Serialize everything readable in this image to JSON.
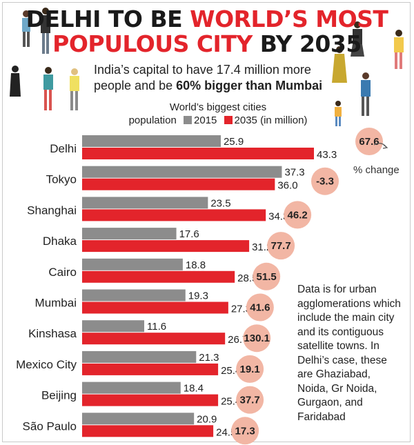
{
  "title": {
    "line1_dark": "DELHI TO BE ",
    "line1_red": "WORLD’S MOST",
    "line2_red": "POPULOUS CITY ",
    "line2_dark": "BY 2035"
  },
  "subtitle": {
    "line1": "India’s capital to have 17.4 million more",
    "line2_plain": "people and be ",
    "line2_bold": "60% bigger than Mumbai"
  },
  "legend": {
    "line1": "World’s biggest cities",
    "prefix": "population",
    "item_2015": "2015",
    "item_2035": "2035 (in million)"
  },
  "pct_change_label": "% change",
  "note": "Data is for urban agglomerations which include the main city and its contiguous satellite towns. In Delhi’s case, these are Ghaziabad, Noida, Gr Noida, Gurgaon, and Faridabad",
  "colors": {
    "bar_2015": "#8c8c8c",
    "bar_2035": "#e3242b",
    "circle": "#f2b6a4",
    "title_red": "#e3242b"
  },
  "chart_data": {
    "type": "bar",
    "orientation": "horizontal",
    "title": "World’s biggest cities population",
    "xlabel": "",
    "ylabel": "",
    "categories": [
      "Delhi",
      "Tokyo",
      "Shanghai",
      "Dhaka",
      "Cairo",
      "Mumbai",
      "Kinshasa",
      "Mexico City",
      "Beijing",
      "São Paulo"
    ],
    "series": [
      {
        "name": "2015",
        "values": [
          25.9,
          37.3,
          23.5,
          17.6,
          18.8,
          19.3,
          11.6,
          21.3,
          18.4,
          20.9
        ]
      },
      {
        "name": "2035 (in million)",
        "values": [
          43.3,
          36.0,
          34.3,
          31.2,
          28.5,
          27.3,
          26.7,
          25.4,
          25.4,
          24.5
        ]
      }
    ],
    "pct_change": [
      "67.6",
      "-3.3",
      "46.2",
      "77.7",
      "51.5",
      "41.6",
      "130.1",
      "19.1",
      "37.7",
      "17.3"
    ],
    "value_labels_2015": [
      "25.9",
      "37.3",
      "23.5",
      "17.6",
      "18.8",
      "19.3",
      "11.6",
      "21.3",
      "18.4",
      "20.9"
    ],
    "value_labels_2035": [
      "43.3",
      "36.0",
      "34.3",
      "31.2",
      "28.5",
      "27.3",
      "26.7",
      "25.4",
      "25.4",
      "24.5"
    ],
    "xlim": [
      0,
      43.3
    ],
    "grid": false,
    "legend_position": "top"
  }
}
